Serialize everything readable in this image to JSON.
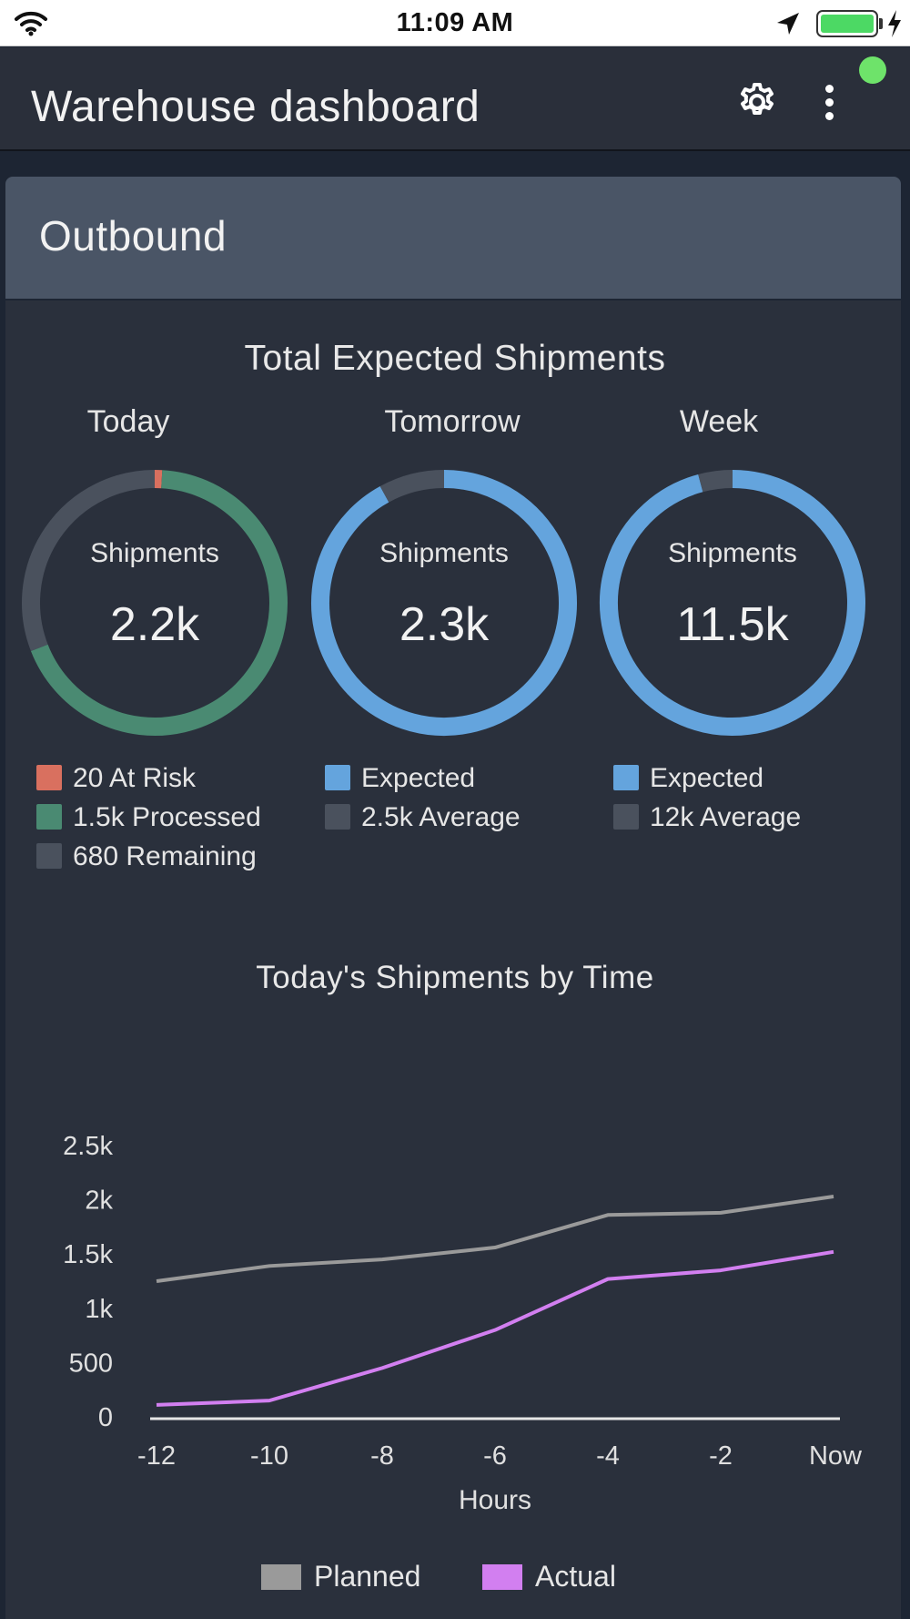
{
  "status_bar": {
    "time": "11:09 AM"
  },
  "header": {
    "title": "Warehouse dashboard"
  },
  "card": {
    "title": "Outbound"
  },
  "summary": {
    "title": "Total Expected Shipments",
    "donuts": [
      {
        "label": "Today",
        "caption": "Shipments",
        "value": "2.2k",
        "segments": [
          {
            "name": "At Risk",
            "value": 20,
            "color": "#d9705f"
          },
          {
            "name": "Processed",
            "value": 1500,
            "color": "#4a8a72"
          },
          {
            "name": "Remaining",
            "value": 680,
            "color": "#4a515d"
          }
        ],
        "legend": [
          "20 At Risk",
          "1.5k Processed",
          "680 Remaining"
        ]
      },
      {
        "label": "Tomorrow",
        "caption": "Shipments",
        "value": "2.3k",
        "segments": [
          {
            "name": "Expected",
            "value": 2300,
            "color": "#64a4dd"
          },
          {
            "name": "Average",
            "value": 200,
            "color": "#4a515d"
          }
        ],
        "legend": [
          "Expected",
          "2.5k Average"
        ]
      },
      {
        "label": "Week",
        "caption": "Shipments",
        "value": "11.5k",
        "segments": [
          {
            "name": "Expected",
            "value": 11500,
            "color": "#64a4dd"
          },
          {
            "name": "Average",
            "value": 500,
            "color": "#4a515d"
          }
        ],
        "legend": [
          "Expected",
          "12k Average"
        ]
      }
    ]
  },
  "chart_data": {
    "type": "line",
    "title": "Today's Shipments by Time",
    "xlabel": "Hours",
    "ylabel": "",
    "x": [
      -12,
      -10,
      -8,
      -6,
      -4,
      -2,
      0
    ],
    "x_tick_labels": [
      "-12",
      "-10",
      "-8",
      "-6",
      "-4",
      "-2",
      "Now"
    ],
    "y_tick_labels": [
      "0",
      "500",
      "1k",
      "1.5k",
      "2k",
      "2.5k"
    ],
    "y_ticks": [
      0,
      500,
      1000,
      1500,
      2000,
      2500
    ],
    "ylim": [
      0,
      2500
    ],
    "series": [
      {
        "name": "Planned",
        "color": "#9a9a9a",
        "values": [
          1250,
          1390,
          1450,
          1560,
          1860,
          1880,
          2030
        ]
      },
      {
        "name": "Actual",
        "color": "#d27ff0",
        "values": [
          110,
          150,
          450,
          800,
          1270,
          1350,
          1520
        ]
      }
    ],
    "grid": false,
    "legend_position": "bottom"
  }
}
